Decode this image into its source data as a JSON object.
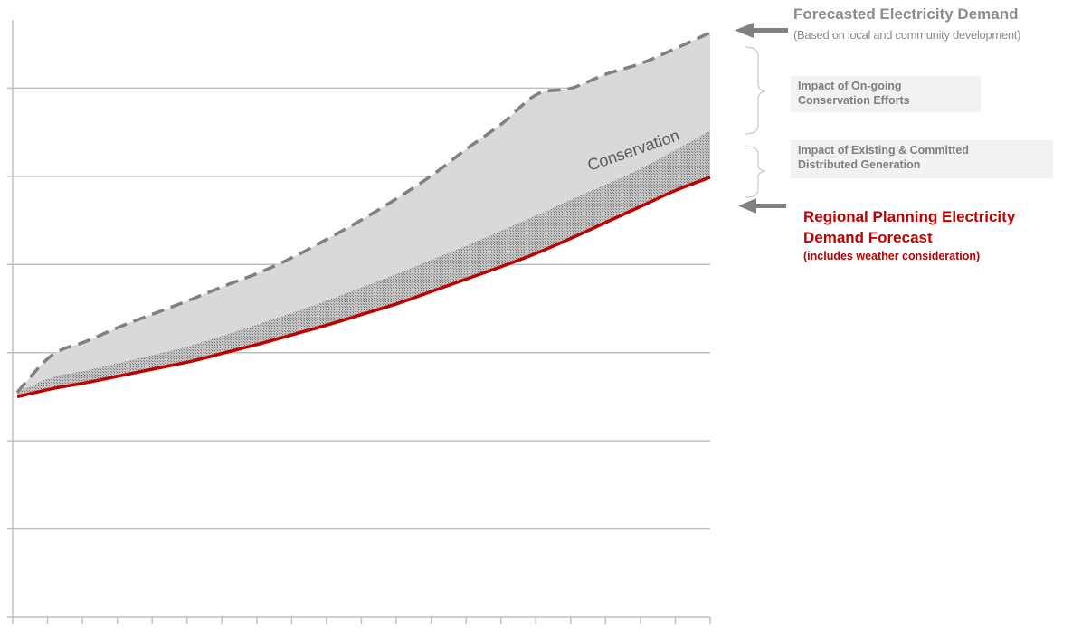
{
  "chart_data": {
    "type": "area",
    "title": "",
    "xlabel": "",
    "ylabel": "",
    "x": [
      0,
      1,
      2,
      3,
      4,
      5,
      6,
      7,
      8,
      9,
      10,
      11,
      12,
      13,
      14,
      15,
      16,
      17,
      18,
      19,
      20
    ],
    "xlim": [
      0,
      20
    ],
    "ylim": [
      0,
      7
    ],
    "grid": true,
    "series": [
      {
        "key": "forecast",
        "values": [
          2.55,
          2.97,
          3.13,
          3.3,
          3.45,
          3.6,
          3.76,
          3.91,
          4.09,
          4.3,
          4.52,
          4.76,
          5.02,
          5.32,
          5.6,
          5.93,
          6.0,
          6.16,
          6.28,
          6.45,
          6.63
        ],
        "color": "#808080",
        "style": "dashed"
      },
      {
        "key": "dg_top",
        "values": [
          2.55,
          2.72,
          2.8,
          2.89,
          2.98,
          3.08,
          3.2,
          3.33,
          3.46,
          3.6,
          3.75,
          3.9,
          4.06,
          4.22,
          4.39,
          4.56,
          4.74,
          4.91,
          5.09,
          5.3,
          5.52
        ],
        "color": "#a6a6a6",
        "style": "hatched"
      },
      {
        "key": "regional",
        "values": [
          2.5,
          2.59,
          2.66,
          2.74,
          2.82,
          2.9,
          3.0,
          3.1,
          3.21,
          3.32,
          3.44,
          3.56,
          3.7,
          3.84,
          3.98,
          4.13,
          4.3,
          4.48,
          4.66,
          4.84,
          4.99
        ],
        "color": "#c00000",
        "style": "solid"
      }
    ],
    "annotations": {
      "conservation": "Conservation",
      "distributed_generation": "Distributed Generation"
    }
  },
  "labels": {
    "forecast_title": "Forecasted Electricity Demand",
    "forecast_sub": "(Based on local and community development)",
    "conservation_line1": "Impact of On-going",
    "conservation_line2": "Conservation Efforts",
    "dg_line1": "Impact of  Existing & Committed",
    "dg_line2": "Distributed Generation",
    "regional_line1": "Regional Planning Electricity",
    "regional_line2": "Demand Forecast",
    "regional_sub": "(includes weather consideration)"
  },
  "colors": {
    "conservation_fill": "#d9d9d9",
    "grid": "#bfbfbf",
    "arrow": "#808080",
    "regional": "#c00000"
  }
}
